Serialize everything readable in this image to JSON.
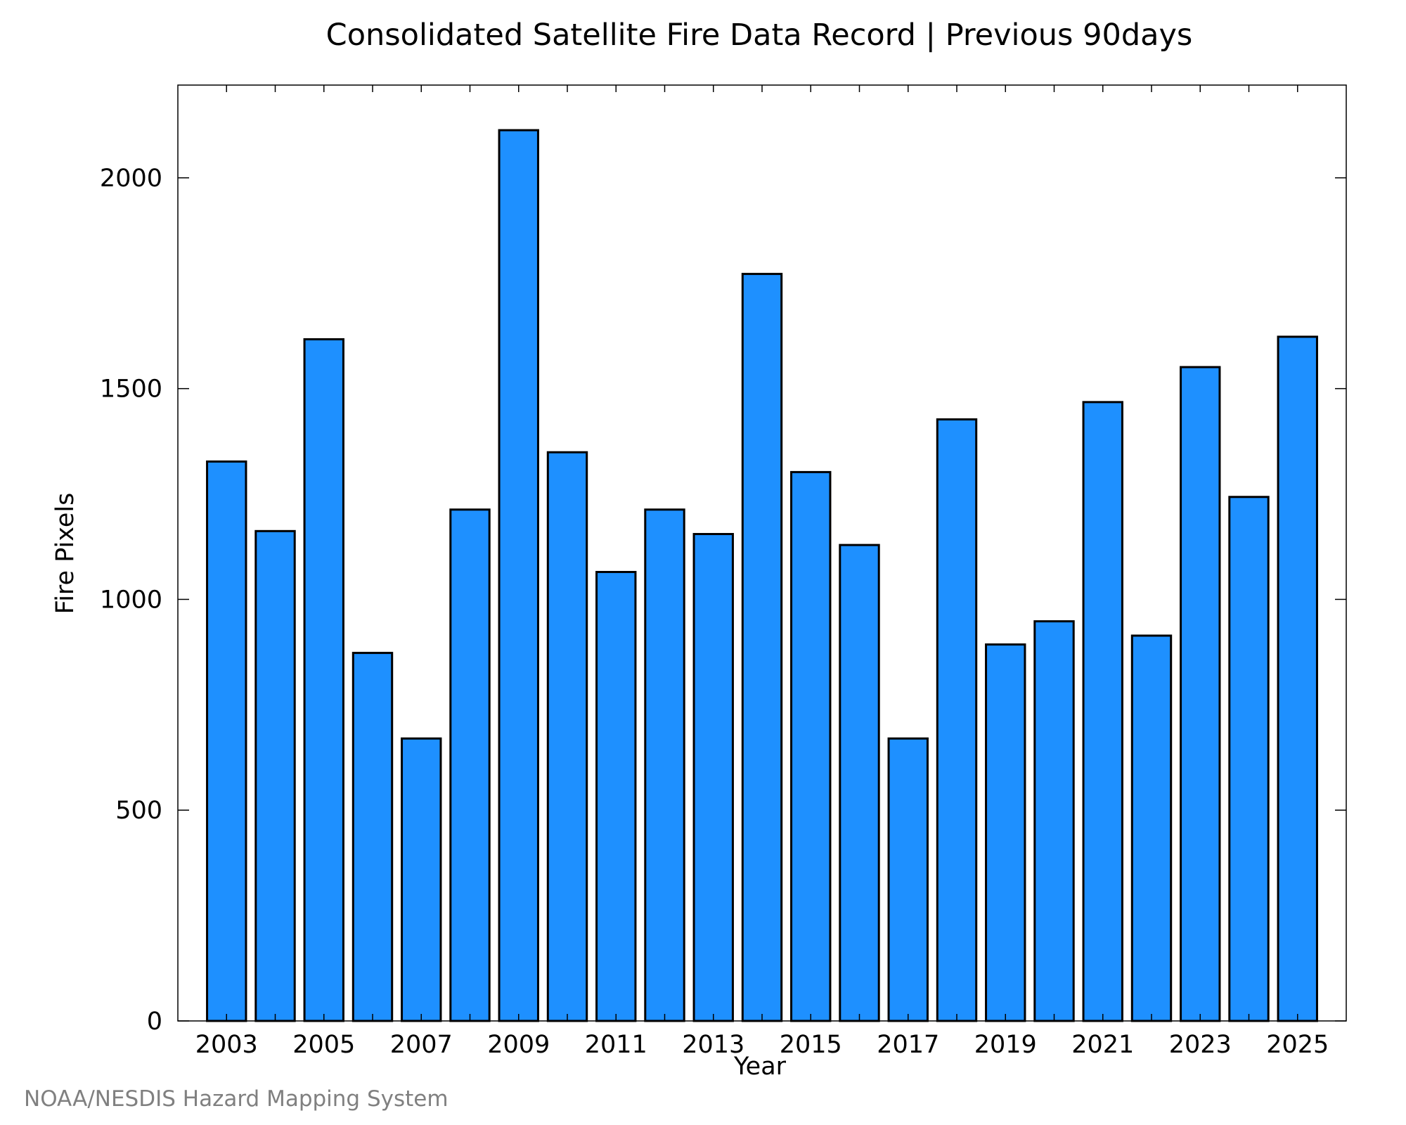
{
  "chart_data": {
    "type": "bar",
    "title": "Consolidated Satellite Fire Data Record | Previous 90days",
    "xlabel": "Year",
    "ylabel": "Fire Pixels",
    "categories": [
      "2003",
      "2004",
      "2005",
      "2006",
      "2007",
      "2008",
      "2009",
      "2010",
      "2011",
      "2012",
      "2013",
      "2014",
      "2015",
      "2016",
      "2017",
      "2018",
      "2019",
      "2020",
      "2021",
      "2022",
      "2023",
      "2024",
      "2025"
    ],
    "values": [
      1327,
      1162,
      1617,
      873,
      670,
      1213,
      2113,
      1349,
      1065,
      1213,
      1155,
      1772,
      1302,
      1129,
      670,
      1427,
      893,
      948,
      1468,
      914,
      1551,
      1243,
      1623
    ],
    "x_tick_labels": [
      "2003",
      "2005",
      "2007",
      "2009",
      "2011",
      "2013",
      "2015",
      "2017",
      "2019",
      "2021",
      "2023",
      "2025"
    ],
    "y_tick_labels": [
      "0",
      "500",
      "1000",
      "1500",
      "2000"
    ],
    "ylim": [
      0,
      2220
    ],
    "grid": false,
    "bar_color": "#1e90ff",
    "edge_color": "#000000"
  },
  "footer": {
    "credit": "NOAA/NESDIS Hazard Mapping System"
  }
}
